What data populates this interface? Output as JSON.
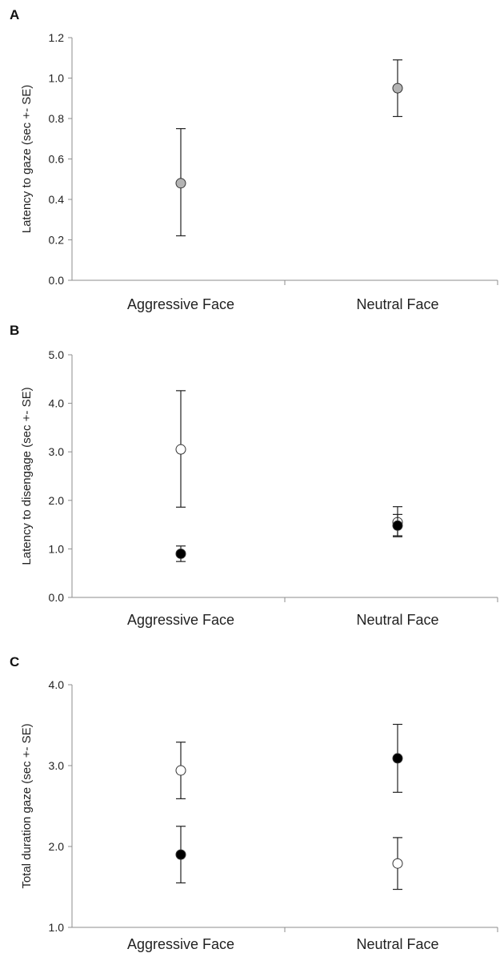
{
  "chart_data": [
    {
      "panel": "A",
      "type": "scatter",
      "categories": [
        "Aggressive Face",
        "Neutral Face"
      ],
      "ylabel": "Latency to gaze (sec +- SE)",
      "ylim": [
        0,
        1.2
      ],
      "yticks": [
        "0.0",
        "0.2",
        "0.4",
        "0.6",
        "0.8",
        "1.0",
        "1.2"
      ],
      "ytick_values": [
        0,
        0.2,
        0.4,
        0.6,
        0.8,
        1.0,
        1.2
      ],
      "series": [
        {
          "marker": "gray",
          "values": [
            0.48,
            0.95
          ],
          "lower": [
            0.22,
            0.81
          ],
          "upper": [
            0.75,
            1.09
          ]
        }
      ]
    },
    {
      "panel": "B",
      "type": "scatter",
      "categories": [
        "Aggressive Face",
        "Neutral Face"
      ],
      "ylabel": "Latency to disengage (sec +- SE)",
      "ylim": [
        0,
        5.0
      ],
      "yticks": [
        "0.0",
        "1.0",
        "2.0",
        "3.0",
        "4.0",
        "5.0"
      ],
      "ytick_values": [
        0,
        1,
        2,
        3,
        4,
        5
      ],
      "series": [
        {
          "marker": "open",
          "values": [
            3.05,
            1.55
          ],
          "lower": [
            1.86,
            1.27
          ],
          "upper": [
            4.26,
            1.87
          ]
        },
        {
          "marker": "filled",
          "values": [
            0.9,
            1.48
          ],
          "lower": [
            0.74,
            1.25
          ],
          "upper": [
            1.06,
            1.71
          ]
        }
      ]
    },
    {
      "panel": "C",
      "type": "scatter",
      "categories": [
        "Aggressive Face",
        "Neutral Face"
      ],
      "ylabel": "Total duration gaze (sec +- SE)",
      "ylim": [
        1.0,
        4.0
      ],
      "yticks": [
        "1.0",
        "2.0",
        "3.0",
        "4.0"
      ],
      "ytick_values": [
        1,
        2,
        3,
        4
      ],
      "series": [
        {
          "marker": "open",
          "values": [
            2.94,
            1.79
          ],
          "lower": [
            2.59,
            1.47
          ],
          "upper": [
            3.29,
            2.11
          ]
        },
        {
          "marker": "filled",
          "values": [
            1.9,
            3.09
          ],
          "lower": [
            1.55,
            2.67
          ],
          "upper": [
            2.25,
            3.51
          ]
        }
      ]
    }
  ],
  "colors": {
    "gray_marker": "#b3b3b3",
    "filled_marker": "#000000",
    "open_marker": "#ffffff",
    "axis": "#8c8c8c",
    "errorbar": "#222222"
  }
}
